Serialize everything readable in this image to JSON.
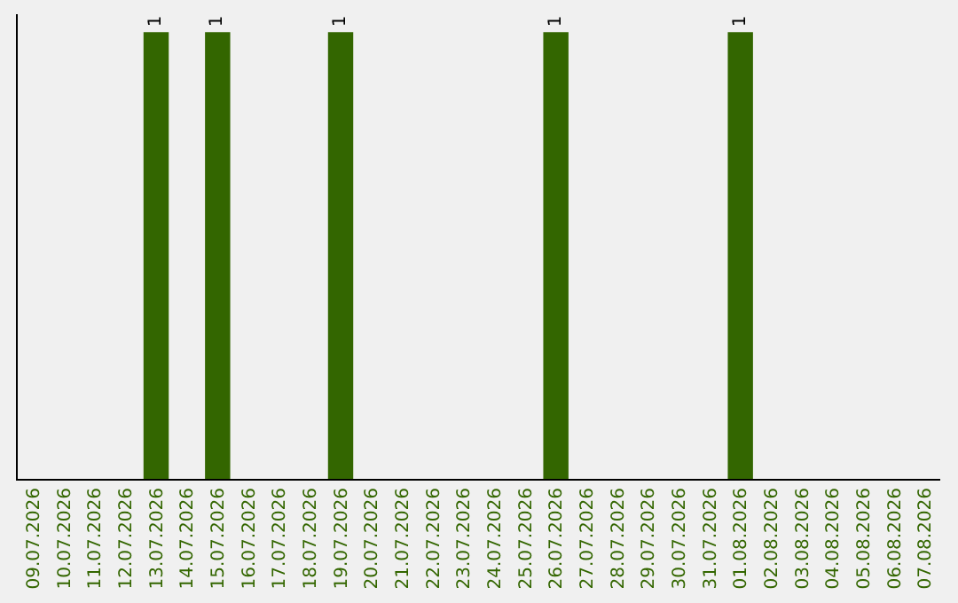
{
  "chart_data": {
    "type": "bar",
    "categories": [
      "09.07.2026",
      "10.07.2026",
      "11.07.2026",
      "12.07.2026",
      "13.07.2026",
      "14.07.2026",
      "15.07.2026",
      "16.07.2026",
      "17.07.2026",
      "18.07.2026",
      "19.07.2026",
      "20.07.2026",
      "21.07.2026",
      "22.07.2026",
      "23.07.2026",
      "24.07.2026",
      "25.07.2026",
      "26.07.2026",
      "27.07.2026",
      "28.07.2026",
      "29.07.2026",
      "30.07.2026",
      "31.07.2026",
      "01.08.2026",
      "02.08.2026",
      "03.08.2026",
      "04.08.2026",
      "05.08.2026",
      "06.08.2026",
      "07.08.2026"
    ],
    "values": [
      0,
      0,
      0,
      0,
      1,
      0,
      1,
      0,
      0,
      0,
      1,
      0,
      0,
      0,
      0,
      0,
      0,
      1,
      0,
      0,
      0,
      0,
      0,
      1,
      0,
      0,
      0,
      0,
      0,
      0
    ],
    "value_labels": [
      null,
      null,
      null,
      null,
      "1",
      null,
      "1",
      null,
      null,
      null,
      "1",
      null,
      null,
      null,
      null,
      null,
      null,
      "1",
      null,
      null,
      null,
      null,
      null,
      "1",
      null,
      null,
      null,
      null,
      null,
      null
    ],
    "color": "#336600",
    "ylim": [
      0,
      1.04
    ],
    "tick_labels": "x",
    "grid": false,
    "legend": false
  }
}
